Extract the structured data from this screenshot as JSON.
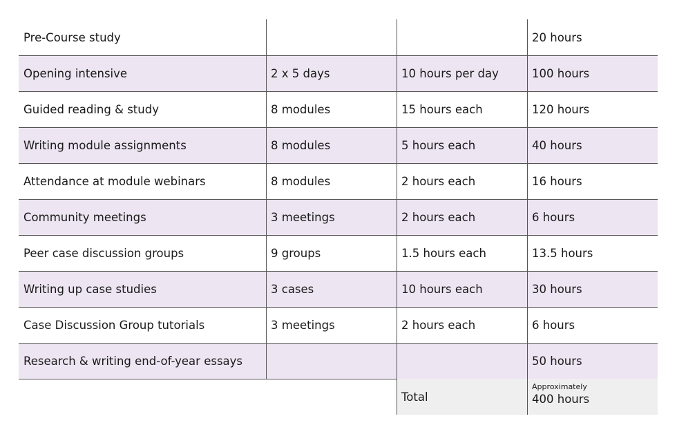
{
  "table": {
    "rows": [
      [
        "Pre-Course study",
        null,
        null,
        "20 hours"
      ],
      [
        "Opening intensive",
        "2 x 5 days",
        "10 hours per day",
        "100 hours"
      ],
      [
        "Guided reading & study",
        "8 modules",
        "15 hours each",
        "120 hours"
      ],
      [
        "Writing module assignments",
        "8 modules",
        "5 hours each",
        "40 hours"
      ],
      [
        "Attendance at module webinars",
        "8 modules",
        "2 hours each",
        "16 hours"
      ],
      [
        "Community meetings",
        "3 meetings",
        "2 hours each",
        "6 hours"
      ],
      [
        "Peer case discussion groups",
        "9 groups",
        "1.5 hours each",
        "13.5 hours"
      ],
      [
        "Writing up case studies",
        "3 cases",
        "10 hours each",
        "30 hours"
      ],
      [
        "Case Discussion Group tutorials",
        "3 meetings",
        "2 hours each",
        "6 hours"
      ],
      [
        "Research & writing end-of-year essays",
        null,
        null,
        "50 hours"
      ]
    ],
    "total": {
      "label": "Total",
      "note": "Approximately",
      "value": "400 hours"
    }
  }
}
